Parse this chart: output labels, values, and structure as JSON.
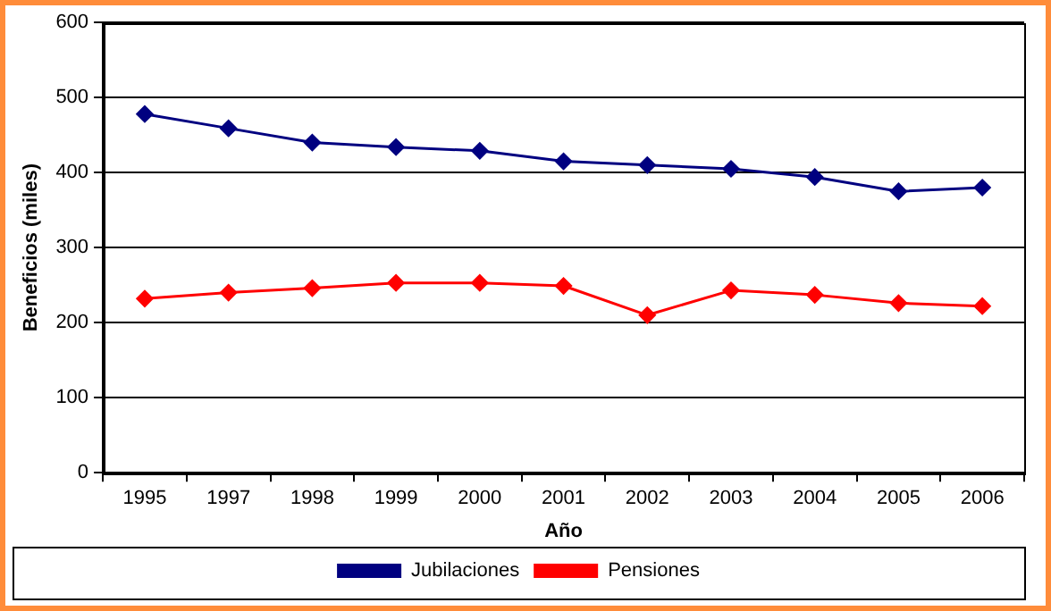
{
  "chart_data": {
    "type": "line",
    "xlabel": "Año",
    "ylabel": "Beneficios (miles)",
    "categories": [
      "1995",
      "1997",
      "1998",
      "1999",
      "2000",
      "2001",
      "2002",
      "2003",
      "2004",
      "2005",
      "2006"
    ],
    "series": [
      {
        "name": "Jubilaciones",
        "color": "#000080",
        "values": [
          478,
          459,
          440,
          434,
          429,
          415,
          410,
          405,
          394,
          375,
          380
        ]
      },
      {
        "name": "Pensiones",
        "color": "#ff0000",
        "values": [
          232,
          240,
          246,
          253,
          253,
          249,
          210,
          243,
          237,
          226,
          222
        ]
      }
    ],
    "ylim": [
      0,
      600
    ],
    "yticks": [
      0,
      100,
      200,
      300,
      400,
      500,
      600
    ],
    "grid": "y",
    "legend": "bottom",
    "marker": "diamond",
    "line_style": "solid"
  }
}
